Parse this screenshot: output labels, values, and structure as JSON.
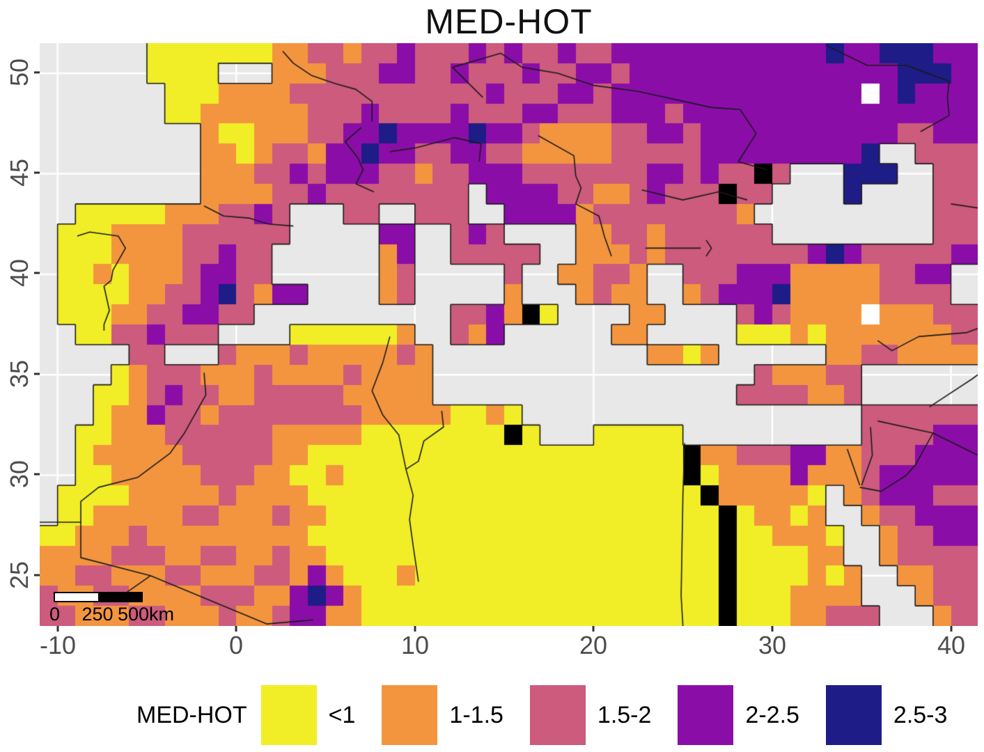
{
  "title": "MED-HOT",
  "axes": {
    "x_labels": [
      "-10",
      "0",
      "10",
      "20",
      "30",
      "40"
    ],
    "y_labels": [
      "50",
      "45",
      "40",
      "35",
      "30",
      "25"
    ],
    "text_color": "#4D4D4D"
  },
  "scalebar": {
    "label_start": "0",
    "label_mid": "250",
    "label_end": "500km"
  },
  "legend": {
    "title": "MED-HOT",
    "items": [
      {
        "label": "<1",
        "color": "#F1EE27"
      },
      {
        "label": "1-1.5",
        "color": "#F3953F"
      },
      {
        "label": "1.5-2",
        "color": "#CC5B7D"
      },
      {
        "label": "2-2.5",
        "color": "#8B0DA8"
      },
      {
        "label": "2.5-3",
        "color": "#1E1C87"
      }
    ]
  },
  "chart_data": {
    "type": "heatmap",
    "title": "MED-HOT",
    "xlabel": "",
    "ylabel": "",
    "x_ticks": [
      -10,
      0,
      10,
      20,
      30,
      40
    ],
    "y_ticks": [
      25,
      30,
      35,
      40,
      45,
      50
    ],
    "lon_range": [
      -11,
      41.5
    ],
    "lat_range": [
      22.5,
      51.5
    ],
    "grid": true,
    "legend_position": "bottom",
    "categories": [
      "<1",
      "1-1.5",
      "1.5-2",
      "2-2.5",
      "2.5-3"
    ],
    "palette": {
      ".": "#E8E8E8",
      "1": "#F1EE27",
      "2": "#F3953F",
      "3": "#CC5B7D",
      "4": "#8B0DA8",
      "5": "#1E1C87",
      "w": "#FFFFFF"
    },
    "cell_codes": {
      ".": "sea",
      "1": "<1",
      "2": "1-1.5",
      "3": "1.5-2",
      "4": "2-2.5",
      "5": "2.5-3",
      "w": "missing"
    },
    "sea_color": "#E8E8E8",
    "gridline_color": "#FFFFFF",
    "coast_color": "#1A1A1A",
    "rows": [
      "......11111112233233433343433433444444444444544555444",
      "......1111...22233344334333433443444444444444444555444",
      ".......111222233333333333433344344444444444444w4544444",
      ".......112222223334333343334433344434444444444444444444",
      ".........21122233445444454432222334434444444444433444",
      ".........22123324454433443322222333334444444445..3333",
      ".........2223343444332334443333333443433 3...555..333",
      ".........222233433333333.4444332234333 33....5....333",
      "..111112223343...33..333..44442333333332..........33",
      ".1112222333333.....44..343....22332333333.........33",
      ".111222233433......24..33333..2223233333333454333334",
      ".112122234433......23.....3..22332..333444222223344",
      ".11112233453244....23.....2...2322..234445222223333",
      ".11122334433...........3342 1....22....3432222w222333",
      "..11334333....1111112..324......22.....1112122222223",
      ".....33...322232222232............2212......22332222",
      "....123332223222232222..................322233",
      "...1123433223333322222.................3333223",
      "...122433233333333222221121...................3333333",
      "..112223333332222211111111 1...11111..........3333444",
      "..1222223333322111111111111111111111 2233344223334444",
      "..1122222333221121111111111111111111 1222242223444443",
      ".111122222322221111111111111111111111 222221.2344433",
      ".1122222332223221111111111111111111111 12212..233444",
      "11222322222222211111111111111111111111 112221..23344",
      "22223332233223221111111111111111111111 111122..23333",
      "22332223322233242111211111111111111111 1111212..2233",
      "32233222233322454211111111111111111111 1112222...233",
      "33222332223223442211111111111111111111 11122333...23"
    ],
    "borders": [
      [
        [
          -8.9,
          41.9
        ],
        [
          -8.2,
          42.1
        ],
        [
          -6.6,
          41.9
        ],
        [
          -6.2,
          41.3
        ],
        [
          -6.9,
          40.2
        ],
        [
          -7.0,
          39.7
        ],
        [
          -7.4,
          39.4
        ],
        [
          -7.1,
          38.2
        ],
        [
          -7.4,
          37.5
        ],
        [
          -7.4,
          37.2
        ]
      ],
      [
        [
          -1.8,
          43.4
        ],
        [
          -0.7,
          42.9
        ],
        [
          0.7,
          42.8
        ],
        [
          1.8,
          42.5
        ],
        [
          3.2,
          42.4
        ]
      ],
      [
        [
          2.6,
          51.1
        ],
        [
          3.2,
          50.5
        ],
        [
          4.2,
          49.9
        ],
        [
          5.5,
          49.5
        ],
        [
          6.7,
          49.2
        ],
        [
          7.6,
          48.6
        ],
        [
          7.6,
          47.6
        ]
      ],
      [
        [
          7.0,
          47.3
        ],
        [
          6.1,
          46.6
        ],
        [
          6.8,
          45.8
        ],
        [
          7.1,
          45.2
        ],
        [
          6.7,
          44.5
        ],
        [
          7.7,
          44.1
        ]
      ],
      [
        [
          8.6,
          46.1
        ],
        [
          10.1,
          46.3
        ],
        [
          12.2,
          46.8
        ],
        [
          13.7,
          46.5
        ],
        [
          13.6,
          45.6
        ]
      ],
      [
        [
          13.8,
          48.8
        ],
        [
          12.1,
          50.3
        ],
        [
          14.8,
          51.0
        ],
        [
          16.0,
          50.3
        ],
        [
          18.0,
          50.0
        ],
        [
          20.0,
          49.4
        ],
        [
          22.5,
          49.1
        ],
        [
          26.6,
          48.3
        ],
        [
          28.2,
          48.2
        ]
      ],
      [
        [
          16.9,
          46.9
        ],
        [
          18.9,
          45.9
        ],
        [
          19.0,
          44.9
        ],
        [
          19.3,
          44.3
        ],
        [
          19.0,
          43.5
        ],
        [
          20.3,
          42.9
        ],
        [
          20.6,
          41.9
        ],
        [
          21.0,
          40.9
        ]
      ],
      [
        [
          22.7,
          44.2
        ],
        [
          25.0,
          43.7
        ],
        [
          27.0,
          44.1
        ],
        [
          28.6,
          43.7
        ]
      ],
      [
        [
          33.0,
          51.4
        ],
        [
          35.3,
          50.4
        ],
        [
          37.5,
          50.4
        ],
        [
          39.9,
          49.6
        ],
        [
          39.8,
          48.8
        ],
        [
          39.9,
          47.9
        ],
        [
          38.3,
          47.1
        ]
      ],
      [
        [
          -1.8,
          35.1
        ],
        [
          -1.7,
          34.0
        ],
        [
          -2.9,
          32.1
        ],
        [
          -3.7,
          31.1
        ],
        [
          -5.5,
          29.9
        ],
        [
          -7.7,
          29.4
        ],
        [
          -8.7,
          28.7
        ],
        [
          -8.7,
          27.66
        ],
        [
          -11,
          27.66
        ]
      ],
      [
        [
          -8.7,
          27.66
        ],
        [
          -8.7,
          25.9
        ],
        [
          -4.8,
          25.0
        ],
        [
          -6.4,
          24.0
        ]
      ],
      [
        [
          -4.8,
          25.0
        ],
        [
          1.7,
          22.6
        ],
        [
          4.3,
          22.8
        ]
      ],
      [
        [
          8.6,
          36.9
        ],
        [
          8.2,
          35.6
        ],
        [
          7.6,
          34.2
        ],
        [
          8.2,
          33.0
        ],
        [
          9.1,
          32.0
        ],
        [
          9.5,
          30.3
        ],
        [
          9.9,
          29.0
        ],
        [
          9.7,
          27.8
        ],
        [
          9.9,
          26.5
        ],
        [
          10.2,
          24.7
        ]
      ],
      [
        [
          11.5,
          33.2
        ],
        [
          11.6,
          32.4
        ],
        [
          10.5,
          31.7
        ],
        [
          10.2,
          30.7
        ],
        [
          9.5,
          30.3
        ]
      ],
      [
        [
          25.1,
          31.6
        ],
        [
          25.0,
          29.0
        ],
        [
          24.9,
          24.0
        ],
        [
          25.0,
          22.5
        ]
      ],
      [
        [
          34.2,
          31.3
        ],
        [
          34.9,
          29.5
        ]
      ],
      [
        [
          35.5,
          32.4
        ],
        [
          35.6,
          31.0
        ],
        [
          35.0,
          29.5
        ]
      ],
      [
        [
          35.9,
          32.7
        ],
        [
          39.0,
          32.1
        ],
        [
          38.0,
          30.5
        ],
        [
          37.5,
          30.0
        ],
        [
          36.1,
          29.2
        ],
        [
          34.9,
          29.4
        ]
      ],
      [
        [
          35.9,
          36.7
        ],
        [
          36.7,
          36.2
        ],
        [
          38.2,
          36.9
        ],
        [
          40.9,
          37.1
        ],
        [
          41.5,
          37.3
        ]
      ],
      [
        [
          38.8,
          33.4
        ],
        [
          41.2,
          34.8
        ],
        [
          41.5,
          35.0
        ]
      ],
      [
        [
          39.0,
          32.1
        ],
        [
          41.5,
          31.0
        ]
      ],
      [
        [
          26.3,
          41.7
        ],
        [
          26.6,
          41.3
        ],
        [
          26.3,
          40.9
        ]
      ],
      [
        [
          22.9,
          41.3
        ],
        [
          26.0,
          41.3
        ]
      ],
      [
        [
          28.2,
          48.2
        ],
        [
          29.1,
          47.0
        ],
        [
          28.1,
          45.6
        ],
        [
          29.7,
          45.2
        ]
      ],
      [
        [
          40.0,
          43.5
        ],
        [
          41.5,
          43.3
        ]
      ]
    ]
  }
}
